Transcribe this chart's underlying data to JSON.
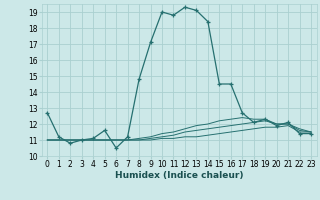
{
  "xlabel": "Humidex (Indice chaleur)",
  "x_values": [
    0,
    1,
    2,
    3,
    4,
    5,
    6,
    7,
    8,
    9,
    10,
    11,
    12,
    13,
    14,
    15,
    16,
    17,
    18,
    19,
    20,
    21,
    22,
    23
  ],
  "main_line": [
    12.7,
    11.2,
    10.8,
    11.0,
    11.1,
    11.6,
    10.5,
    11.2,
    14.8,
    17.1,
    19.0,
    18.8,
    19.3,
    19.1,
    18.4,
    14.5,
    14.5,
    12.7,
    12.1,
    12.3,
    11.9,
    12.1,
    11.4,
    11.4
  ],
  "line2": [
    11.0,
    11.0,
    11.0,
    11.0,
    11.0,
    11.0,
    11.0,
    11.0,
    11.0,
    11.0,
    11.1,
    11.1,
    11.2,
    11.2,
    11.3,
    11.4,
    11.5,
    11.6,
    11.7,
    11.8,
    11.8,
    11.9,
    11.5,
    11.5
  ],
  "line3": [
    11.0,
    11.0,
    11.0,
    11.0,
    11.0,
    11.0,
    11.0,
    11.0,
    11.0,
    11.1,
    11.2,
    11.3,
    11.5,
    11.6,
    11.7,
    11.8,
    11.9,
    12.0,
    12.1,
    12.2,
    12.0,
    12.0,
    11.6,
    11.5
  ],
  "line4": [
    11.0,
    11.0,
    11.0,
    11.0,
    11.0,
    11.0,
    11.0,
    11.0,
    11.1,
    11.2,
    11.4,
    11.5,
    11.7,
    11.9,
    12.0,
    12.2,
    12.3,
    12.4,
    12.3,
    12.3,
    12.0,
    12.0,
    11.7,
    11.5
  ],
  "line_color": "#267070",
  "bg_color": "#cce8e8",
  "grid_color": "#aad0d0",
  "ylim": [
    10.0,
    19.5
  ],
  "xlim": [
    -0.5,
    23.5
  ],
  "yticks": [
    10,
    11,
    12,
    13,
    14,
    15,
    16,
    17,
    18,
    19
  ],
  "xticks": [
    0,
    1,
    2,
    3,
    4,
    5,
    6,
    7,
    8,
    9,
    10,
    11,
    12,
    13,
    14,
    15,
    16,
    17,
    18,
    19,
    20,
    21,
    22,
    23
  ],
  "tick_fontsize": 5.5,
  "xlabel_fontsize": 6.5
}
